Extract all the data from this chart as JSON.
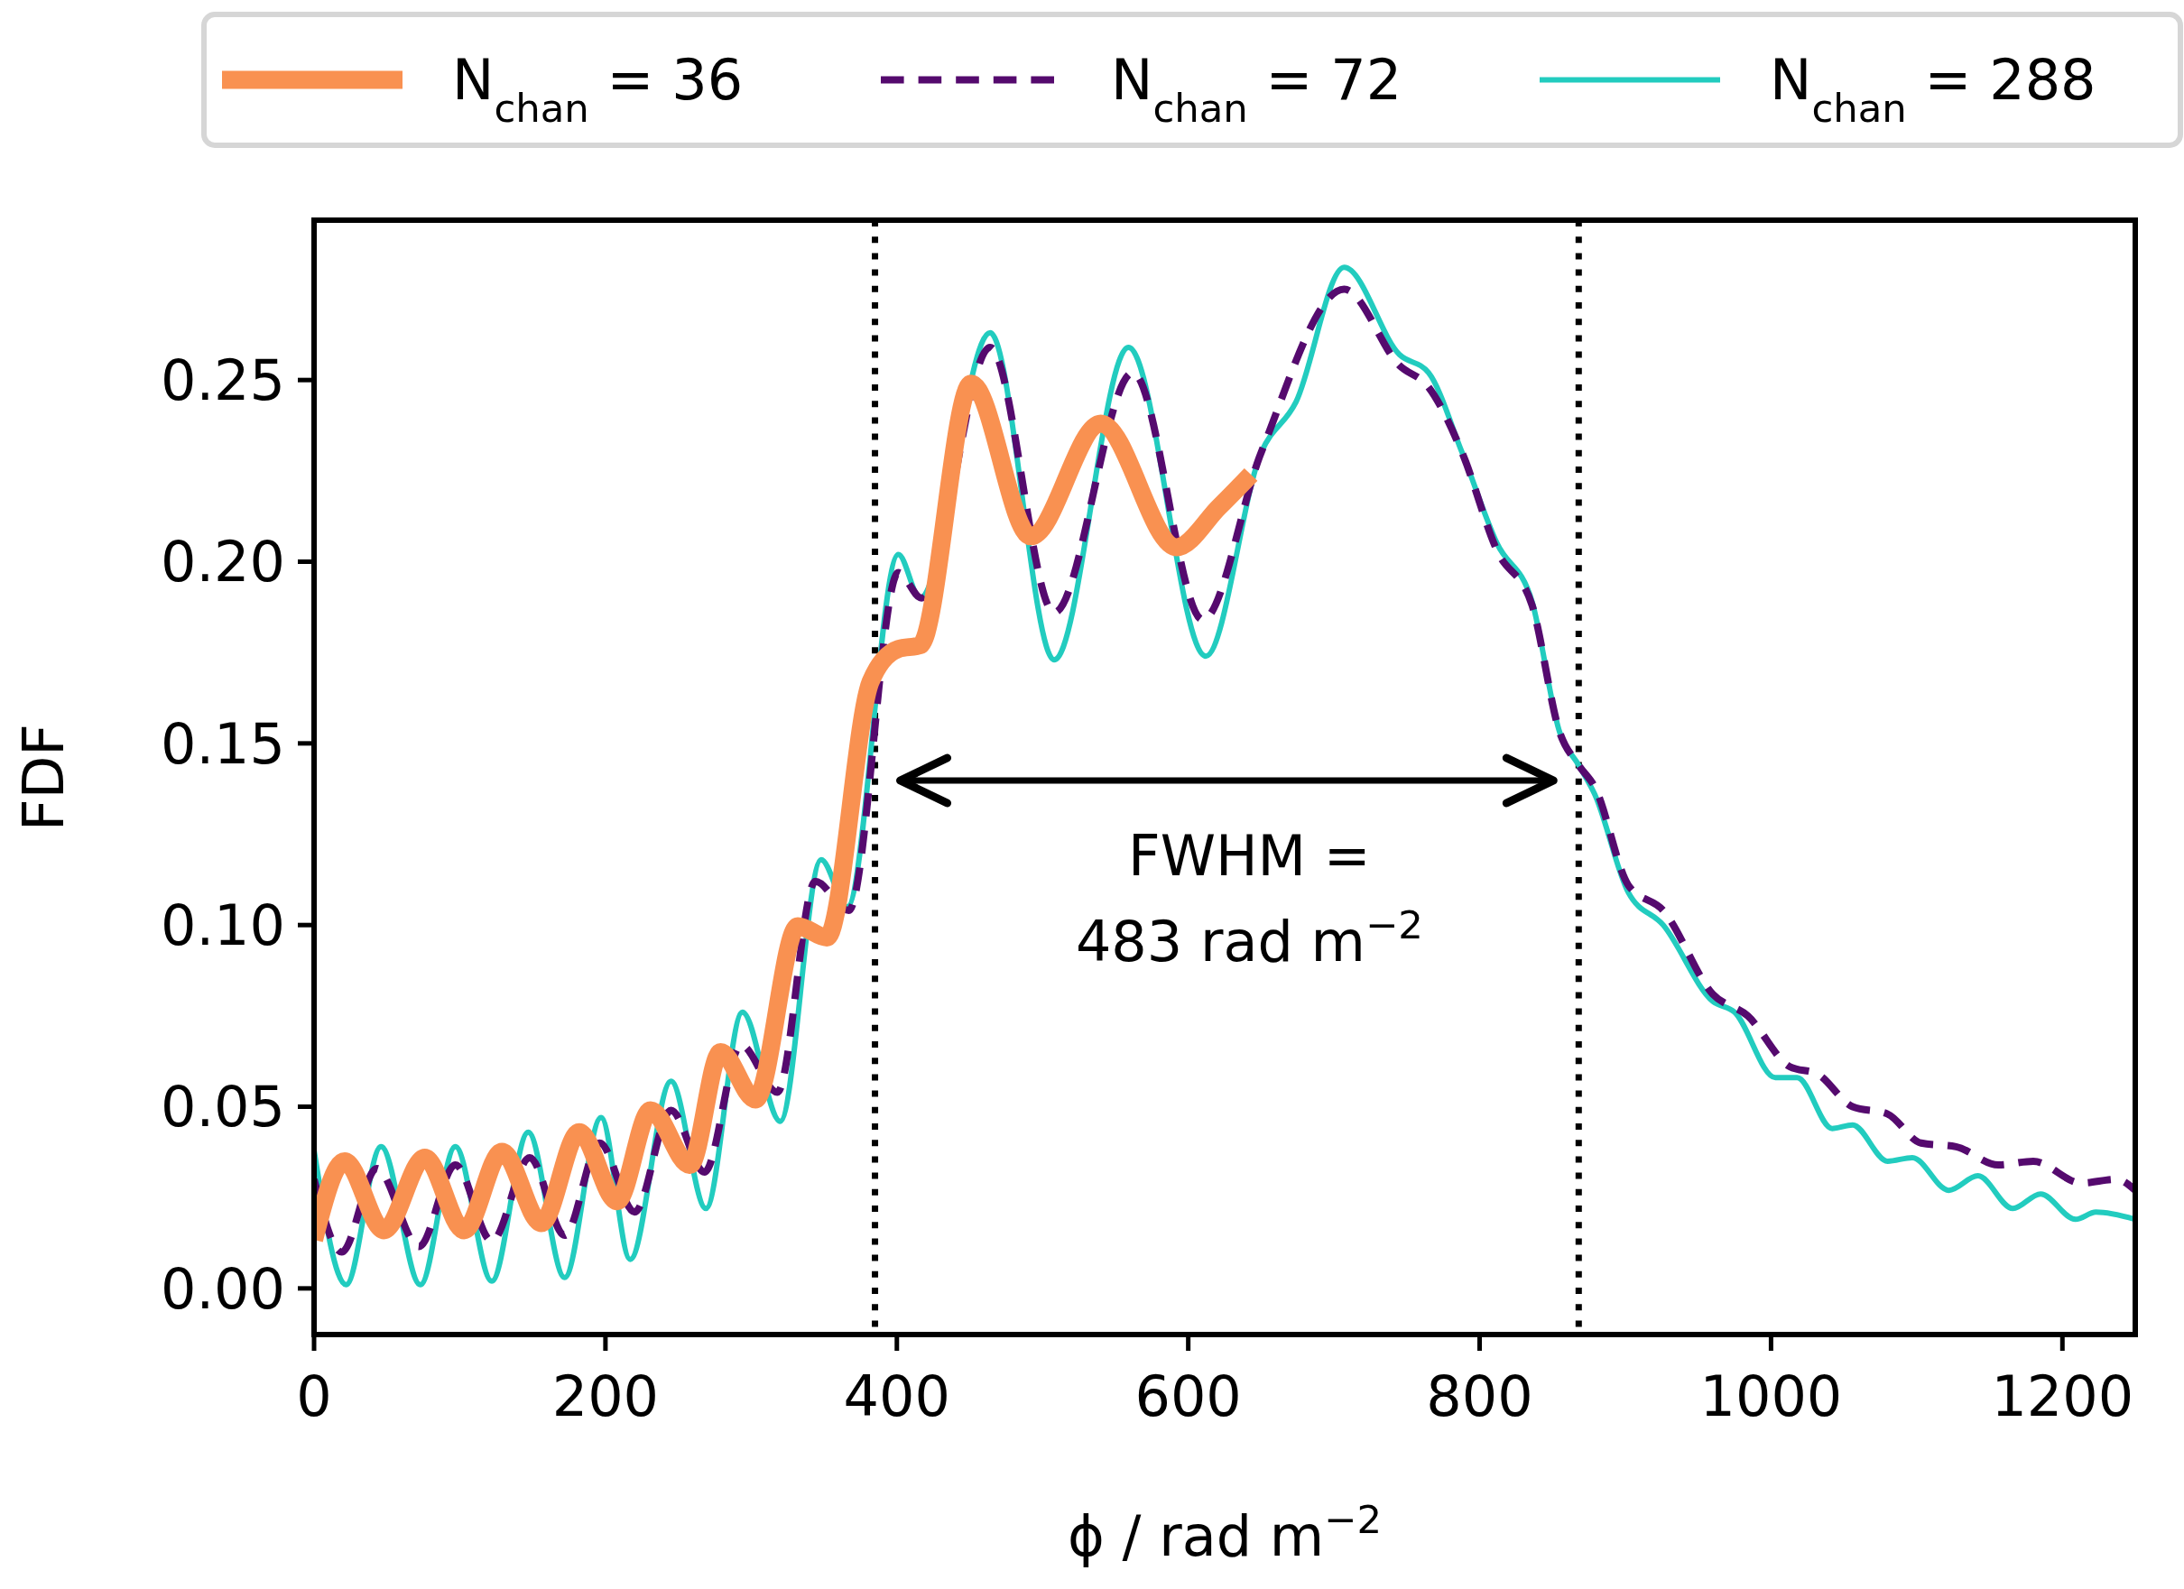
{
  "chart_data": {
    "type": "line",
    "xlabel": "ϕ / rad m$^{−2}$",
    "ylabel": "FDF",
    "xlim": [
      0,
      1250
    ],
    "ylim": [
      -0.0127,
      0.294
    ],
    "xticks": [
      0,
      200,
      400,
      600,
      800,
      1000,
      1200
    ],
    "yticks": [
      {
        "value": 0,
        "label": "0.00"
      },
      {
        "value": 0.05,
        "label": "0.05"
      },
      {
        "value": 0.1,
        "label": "0.10"
      },
      {
        "value": 0.15,
        "label": "0.15"
      },
      {
        "value": 0.2,
        "label": "0.20"
      },
      {
        "value": 0.25,
        "label": "0.25"
      }
    ],
    "grid": false,
    "legend": "top",
    "series": [
      {
        "name": "N$_{chan}$ = 36",
        "color": "#f99151",
        "line_style": "solid",
        "x": [
          0,
          21,
          48,
          76,
          103,
          129,
          156,
          182,
          208,
          231,
          258,
          279,
          303,
          332,
          352,
          382,
          401,
          416,
          451,
          492,
          540,
          592,
          621,
          643
        ],
        "values": [
          0.0134,
          0.035,
          0.016,
          0.036,
          0.016,
          0.0376,
          0.018,
          0.043,
          0.024,
          0.049,
          0.034,
          0.065,
          0.052,
          0.0997,
          0.0966,
          0.167,
          0.176,
          0.177,
          0.249,
          0.207,
          0.238,
          0.204,
          0.215,
          0.224
        ]
      },
      {
        "name": "N$_{chan}$ = 72",
        "color": "#550a6e",
        "line_style": "dashed",
        "x": [
          0,
          19,
          43,
          72,
          97,
          122,
          148,
          172,
          196,
          220,
          245,
          268,
          293,
          318,
          344,
          367,
          401,
          417,
          464,
          508,
          562,
          610,
          650,
          707,
          745,
          765,
          788,
          812,
          836,
          855,
          868,
          879,
          902,
          926,
          960,
          984,
          1013,
          1032,
          1056,
          1080,
          1103,
          1127,
          1156,
          1180,
          1213,
          1237,
          1250
        ],
        "values": [
          0.03,
          0.01,
          0.033,
          0.0115,
          0.034,
          0.013,
          0.036,
          0.0146,
          0.04,
          0.021,
          0.049,
          0.032,
          0.067,
          0.054,
          0.112,
          0.104,
          0.197,
          0.19,
          0.259,
          0.186,
          0.252,
          0.184,
          0.23,
          0.275,
          0.254,
          0.248,
          0.23,
          0.203,
          0.188,
          0.153,
          0.144,
          0.138,
          0.111,
          0.104,
          0.081,
          0.075,
          0.061,
          0.059,
          0.05,
          0.048,
          0.04,
          0.039,
          0.034,
          0.035,
          0.029,
          0.03,
          0.027
        ]
      },
      {
        "name": "N$_{chan}$ = 288",
        "color": "#22ccbf",
        "line_style": "solid",
        "x": [
          0,
          22,
          46,
          73,
          97,
          122,
          147,
          172,
          197,
          217,
          245,
          269,
          294,
          320,
          348,
          366,
          401,
          416,
          464,
          508,
          559,
          612,
          650,
          674,
          707,
          745,
          765,
          788,
          812,
          836,
          855,
          868,
          879,
          902,
          926,
          960,
          975,
          1003,
          1018,
          1042,
          1056,
          1080,
          1097,
          1122,
          1142,
          1166,
          1185,
          1209,
          1223,
          1250
        ],
        "values": [
          0.038,
          0.001,
          0.039,
          0.001,
          0.039,
          0.002,
          0.043,
          0.003,
          0.047,
          0.008,
          0.057,
          0.022,
          0.076,
          0.046,
          0.118,
          0.105,
          0.202,
          0.19,
          0.263,
          0.173,
          0.259,
          0.174,
          0.23,
          0.244,
          0.281,
          0.257,
          0.252,
          0.23,
          0.205,
          0.189,
          0.153,
          0.144,
          0.136,
          0.109,
          0.1,
          0.079,
          0.076,
          0.058,
          0.058,
          0.044,
          0.045,
          0.035,
          0.036,
          0.027,
          0.031,
          0.022,
          0.026,
          0.019,
          0.021,
          0.019
        ]
      }
    ],
    "ref_lines": [
      {
        "axis": "x",
        "value": 385,
        "line_style": "dotted",
        "color": "#000000"
      },
      {
        "axis": "x",
        "value": 868,
        "line_style": "dotted",
        "color": "#000000"
      }
    ],
    "annotations": [
      "FWHM =\n483 rad m$^{−2}$"
    ]
  }
}
